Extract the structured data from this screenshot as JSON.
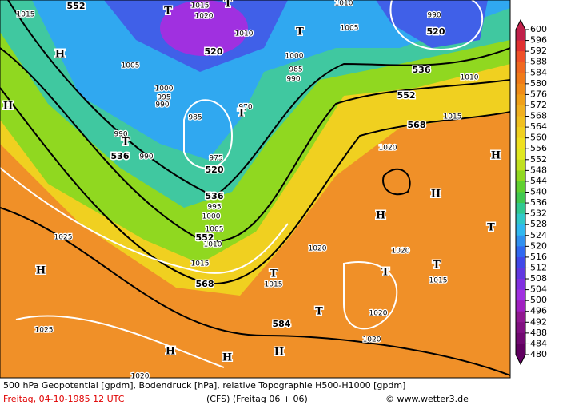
{
  "map_labels": [
    "1015",
    "552",
    "T",
    "1015",
    "1020",
    "T",
    "H",
    "1010",
    "T",
    "520",
    "1005",
    "1010",
    "990",
    "520",
    "1000",
    "1005",
    "985",
    "990",
    "536",
    "1010",
    "H",
    "1000",
    "995",
    "990",
    "552",
    "970",
    "T",
    "985",
    "1015",
    "568",
    "990",
    "T",
    "536",
    "990",
    "1020",
    "H",
    "975",
    "520",
    "H",
    "536",
    "995",
    "H",
    "1000",
    "1005",
    "552",
    "1010",
    "1025",
    "1020",
    "1020",
    "T",
    "H",
    "1015",
    "T",
    "T",
    "T",
    "1015",
    "568",
    "1015",
    "T",
    "1020",
    "584",
    "1025",
    "H",
    "H",
    "H",
    "1020",
    "1020"
  ],
  "colorbar": {
    "ticks": [
      600,
      596,
      592,
      588,
      584,
      580,
      576,
      572,
      568,
      564,
      560,
      556,
      552,
      548,
      544,
      540,
      536,
      532,
      528,
      524,
      520,
      516,
      512,
      508,
      504,
      500,
      496,
      492,
      488,
      484,
      480
    ],
    "colors": [
      "#c0204a",
      "#e03030",
      "#f05028",
      "#f06820",
      "#f07a18",
      "#f08c18",
      "#f0a018",
      "#f0b020",
      "#f0c020",
      "#f0d020",
      "#f0e020",
      "#e0e820",
      "#c0e020",
      "#90d820",
      "#60d030",
      "#40c850",
      "#30c890",
      "#30c8c8",
      "#30b8f0",
      "#3090f0",
      "#3068f0",
      "#4048e8",
      "#6038e0",
      "#8030e0",
      "#a030e0",
      "#a020c0",
      "#901890",
      "#801080",
      "#700870",
      "#600060"
    ]
  },
  "footer": {
    "line1": "500 hPa Geopotential [gpdm], Bodendruck [hPa], relative Topographie H500-H1000 [gpdm]",
    "date": "Freitag, 04-10-1985  12 UTC",
    "run": "(CFS)  (Freitag 06 + 06)",
    "copyright": "© www.wetter3.de"
  }
}
